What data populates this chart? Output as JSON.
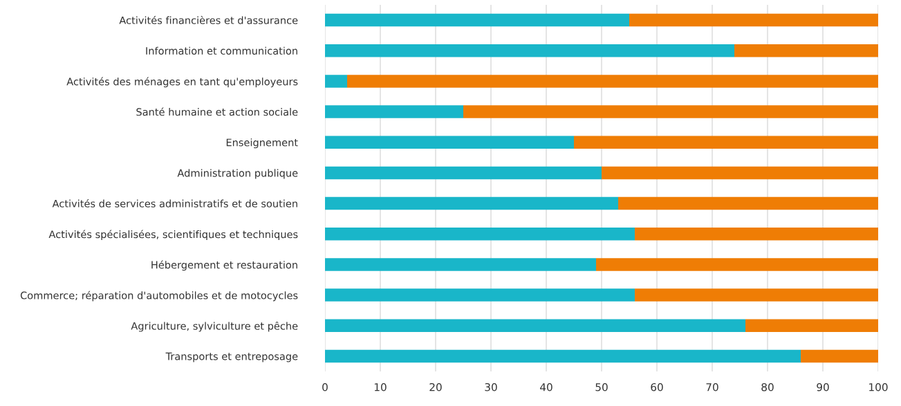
{
  "chart_data": {
    "type": "bar",
    "orientation": "horizontal",
    "stacked": true,
    "grid": "x",
    "categories": [
      "Activités financières et d'assurance",
      "Information et communication",
      "Activités des ménages en tant qu'employeurs",
      "Santé humaine et action sociale",
      "Enseignement",
      "Administration publique",
      "Activités de services administratifs et de soutien",
      "Activités spécialisées, scientifiques et techniques",
      "Hébergement et restauration",
      "Commerce; réparation d'automobiles et de motocycles",
      "Agriculture, sylviculture et pêche",
      "Transports et entreposage"
    ],
    "series": [
      {
        "color": "#19b6c9",
        "values": [
          55,
          74,
          4,
          25,
          45,
          50,
          53,
          56,
          49,
          56,
          76,
          86
        ]
      },
      {
        "color": "#ef7d05",
        "values": [
          45,
          26,
          96,
          75,
          55,
          50,
          47,
          44,
          51,
          44,
          24,
          14
        ]
      }
    ],
    "xlim": [
      0,
      100
    ],
    "xticks": [
      0,
      10,
      20,
      30,
      40,
      50,
      60,
      70,
      80,
      90,
      100
    ]
  }
}
